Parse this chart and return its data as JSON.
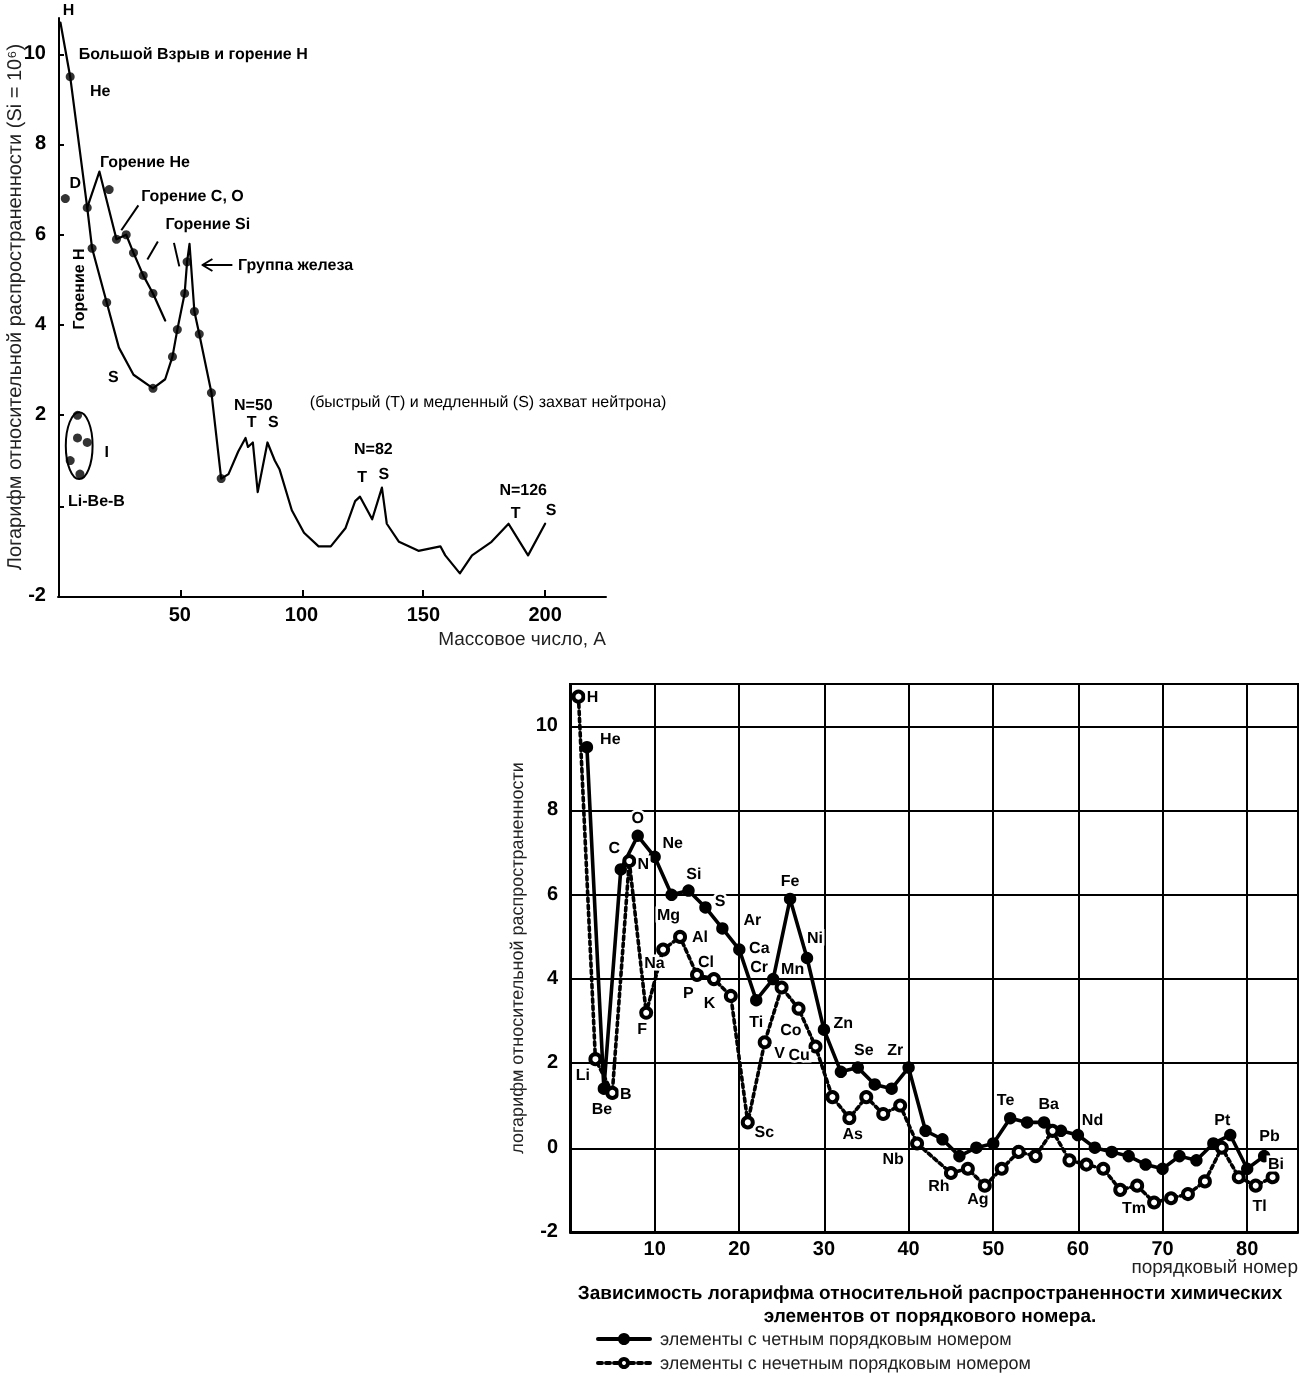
{
  "chart_data": [
    {
      "type": "line",
      "xlabel": "Массовое число, A",
      "ylabel": "Логарифм относительной распространенности (Si = 10⁶)",
      "xlim": [
        0,
        225
      ],
      "xticks": [
        50,
        100,
        150,
        200
      ],
      "ylim": [
        -2,
        10.8
      ],
      "yticks": [
        -2,
        {
          "value": 0,
          "label": null
        },
        2,
        4,
        6,
        8,
        10
      ],
      "series": [
        {
          "color": "#000000",
          "marker": "none",
          "x": [
            1,
            5,
            12,
            14,
            20,
            25,
            31,
            39,
            44,
            47,
            49,
            52,
            53,
            54,
            56,
            58,
            63,
            67,
            70,
            74,
            77,
            78,
            80,
            82,
            86,
            89,
            91,
            96,
            101,
            107,
            112,
            118,
            122,
            124,
            129,
            133,
            135,
            140,
            148,
            157,
            159,
            165,
            170,
            178,
            185,
            193,
            200
          ],
          "values": [
            10.7,
            9.5,
            6.6,
            5.7,
            4.5,
            3.5,
            2.9,
            2.6,
            2.8,
            3.3,
            3.9,
            4.7,
            5.4,
            5.8,
            4.3,
            3.8,
            2.5,
            0.6,
            0.7,
            1.2,
            1.5,
            1.3,
            1.4,
            0.3,
            1.4,
            1.0,
            0.8,
            -0.1,
            -0.6,
            -0.9,
            -0.9,
            -0.5,
            0.1,
            0.2,
            -0.3,
            0.4,
            -0.4,
            -0.8,
            -1.0,
            -0.9,
            -1.1,
            -1.5,
            -1.1,
            -0.8,
            -0.4,
            -1.1,
            -0.4
          ]
        },
        {
          "color": "#000000",
          "marker": "none",
          "x": [
            12,
            17,
            24,
            28,
            31,
            35,
            39,
            44
          ],
          "values": [
            6.6,
            7.4,
            5.9,
            6.0,
            5.6,
            5.1,
            4.7,
            4.1
          ]
        },
        {
          "type": "scatter",
          "color": "#000000",
          "marker": "circle",
          "x": [
            3,
            5,
            12,
            14,
            20,
            39,
            47,
            49,
            52,
            53,
            56,
            58,
            63,
            67,
            21,
            24,
            28,
            31,
            35,
            39,
            8,
            8,
            12,
            5,
            9
          ],
          "values": [
            6.8,
            9.5,
            6.6,
            5.7,
            4.5,
            2.6,
            3.3,
            3.9,
            4.7,
            5.4,
            4.3,
            3.8,
            2.5,
            0.6,
            7.0,
            5.9,
            6.0,
            5.6,
            5.1,
            4.7,
            2.0,
            1.5,
            1.4,
            1.0,
            0.7
          ]
        }
      ],
      "annotations": [
        {
          "text": "H",
          "x": 1,
          "y": 10.7
        },
        "Большой Взрыв и горение H",
        {
          "text": "He",
          "x": 5,
          "y": 9.5
        },
        {
          "text": "D",
          "x": 3,
          "y": 6.8
        },
        "Горение He",
        "Горение C, O",
        "Горение Si",
        "Группа железа",
        "Горение H",
        "S",
        "I",
        "Li-Be-B",
        "N=50",
        {
          "text": "T",
          "x": 77,
          "y": 1.5
        },
        {
          "text": "S",
          "x": 86,
          "y": 1.4
        },
        "(быстрый (T) и медленный (S) захват нейтрона)",
        "N=82",
        {
          "text": "T",
          "x": 124,
          "y": 0.2
        },
        {
          "text": "S",
          "x": 133,
          "y": 0.4
        },
        "N=126",
        {
          "text": "T",
          "x": 185,
          "y": -0.4
        },
        {
          "text": "S",
          "x": 200,
          "y": -0.4
        }
      ]
    },
    {
      "type": "line",
      "title": "Зависимость логарифма относительной распространенности химических элементов от порядкового номера.",
      "xlabel": "порядковый номер",
      "ylabel": "логарифм относительной распространенности",
      "xlim": [
        0,
        86
      ],
      "xticks": [
        10,
        20,
        30,
        40,
        50,
        60,
        70,
        80
      ],
      "ylim": [
        -2,
        11
      ],
      "yticks": [
        -2,
        0,
        2,
        4,
        6,
        8,
        10
      ],
      "grid": true,
      "legend": "bottom",
      "marker": "circle",
      "series": [
        {
          "name": "элементы с четным порядковым номером",
          "color": "#000000",
          "line_style": "solid",
          "x": [
            2,
            4,
            6,
            8,
            10,
            12,
            14,
            16,
            18,
            20,
            22,
            24,
            26,
            28,
            30,
            32,
            34,
            36,
            38,
            40,
            42,
            44,
            46,
            48,
            50,
            52,
            54,
            56,
            58,
            60,
            62,
            64,
            66,
            68,
            70,
            72,
            74,
            76,
            78,
            80,
            82
          ],
          "values": [
            9.5,
            1.4,
            6.6,
            7.4,
            6.9,
            6.0,
            6.1,
            5.7,
            5.2,
            4.7,
            3.5,
            4.0,
            5.9,
            4.5,
            2.8,
            1.8,
            1.9,
            1.5,
            1.4,
            1.9,
            0.4,
            0.2,
            -0.2,
            0.0,
            0.1,
            0.7,
            0.6,
            0.6,
            0.4,
            0.3,
            0.0,
            -0.1,
            -0.2,
            -0.4,
            -0.5,
            -0.2,
            -0.3,
            0.1,
            0.3,
            -0.5,
            -0.2
          ]
        },
        {
          "name": "элементы с нечетным порядковым номером",
          "color": "#000000",
          "line_style": "dotted",
          "x": [
            1,
            3,
            5,
            7,
            9,
            11,
            13,
            15,
            17,
            19,
            21,
            23,
            25,
            27,
            29,
            31,
            33,
            35,
            37,
            39,
            41,
            45,
            47,
            49,
            51,
            53,
            55,
            57,
            59,
            61,
            63,
            65,
            67,
            69,
            71,
            73,
            75,
            77,
            79,
            81,
            83
          ],
          "values": [
            10.7,
            2.1,
            1.3,
            6.8,
            3.2,
            4.7,
            5.0,
            4.1,
            4.0,
            3.6,
            0.6,
            2.5,
            3.8,
            3.3,
            2.4,
            1.2,
            0.7,
            1.2,
            0.8,
            1.0,
            0.1,
            -0.6,
            -0.5,
            -0.9,
            -0.5,
            -0.1,
            -0.2,
            0.4,
            -0.3,
            -0.4,
            -0.5,
            -1.0,
            -0.9,
            -1.3,
            -1.2,
            -1.1,
            -0.8,
            0.0,
            -0.7,
            -0.9,
            -0.7
          ]
        }
      ],
      "annotations": [
        {
          "text": "H",
          "x": 1,
          "y": 10.7
        },
        {
          "text": "He",
          "x": 2,
          "y": 9.5
        },
        {
          "text": "Li",
          "x": 3,
          "y": 2.1
        },
        {
          "text": "Be",
          "x": 4,
          "y": 1.4
        },
        {
          "text": "B",
          "x": 5,
          "y": 1.3
        },
        {
          "text": "C",
          "x": 6,
          "y": 6.6
        },
        {
          "text": "O",
          "x": 8,
          "y": 7.4
        },
        {
          "text": "N",
          "x": 7,
          "y": 6.8
        },
        {
          "text": "Ne",
          "x": 10,
          "y": 6.9
        },
        {
          "text": "Mg",
          "x": 12,
          "y": 6.0
        },
        {
          "text": "Na",
          "x": 11,
          "y": 4.7
        },
        {
          "text": "F",
          "x": 9,
          "y": 3.2
        },
        {
          "text": "Si",
          "x": 14,
          "y": 6.1
        },
        {
          "text": "Al",
          "x": 13,
          "y": 5.0
        },
        {
          "text": "S",
          "x": 16,
          "y": 5.7
        },
        {
          "text": "Ar",
          "x": 18,
          "y": 5.2
        },
        {
          "text": "Ca",
          "x": 20,
          "y": 4.7
        },
        {
          "text": "Cl",
          "x": 17,
          "y": 4.0
        },
        {
          "text": "P",
          "x": 15,
          "y": 4.1
        },
        {
          "text": "K",
          "x": 19,
          "y": 3.6
        },
        {
          "text": "Ti",
          "x": 22,
          "y": 3.5
        },
        {
          "text": "Cr",
          "x": 24,
          "y": 4.0
        },
        {
          "text": "V",
          "x": 23,
          "y": 2.5
        },
        {
          "text": "Sc",
          "x": 21,
          "y": 0.6
        },
        {
          "text": "Fe",
          "x": 26,
          "y": 5.9
        },
        {
          "text": "Mn",
          "x": 25,
          "y": 3.8
        },
        {
          "text": "Co",
          "x": 27,
          "y": 3.3
        },
        {
          "text": "Ni",
          "x": 28,
          "y": 4.5
        },
        {
          "text": "Cu",
          "x": 29,
          "y": 2.4
        },
        {
          "text": "Zn",
          "x": 30,
          "y": 2.8
        },
        {
          "text": "Se",
          "x": 34,
          "y": 1.9
        },
        {
          "text": "Zr",
          "x": 40,
          "y": 1.9
        },
        {
          "text": "As",
          "x": 33,
          "y": 0.7
        },
        {
          "text": "Nb",
          "x": 41,
          "y": 0.1
        },
        {
          "text": "Rh",
          "x": 45,
          "y": -0.6
        },
        {
          "text": "Ag",
          "x": 47,
          "y": -0.5
        },
        {
          "text": "Te",
          "x": 52,
          "y": 0.7
        },
        {
          "text": "Ba",
          "x": 56,
          "y": 0.6
        },
        {
          "text": "Nd",
          "x": 60,
          "y": 0.3
        },
        {
          "text": "Tm",
          "x": 69,
          "y": -1.3
        },
        {
          "text": "Pt",
          "x": 78,
          "y": 0.3
        },
        {
          "text": "Pb",
          "x": 82,
          "y": -0.2
        },
        {
          "text": "Bi",
          "x": 83,
          "y": -0.7
        },
        {
          "text": "Tl",
          "x": 81,
          "y": -0.9
        }
      ]
    }
  ]
}
